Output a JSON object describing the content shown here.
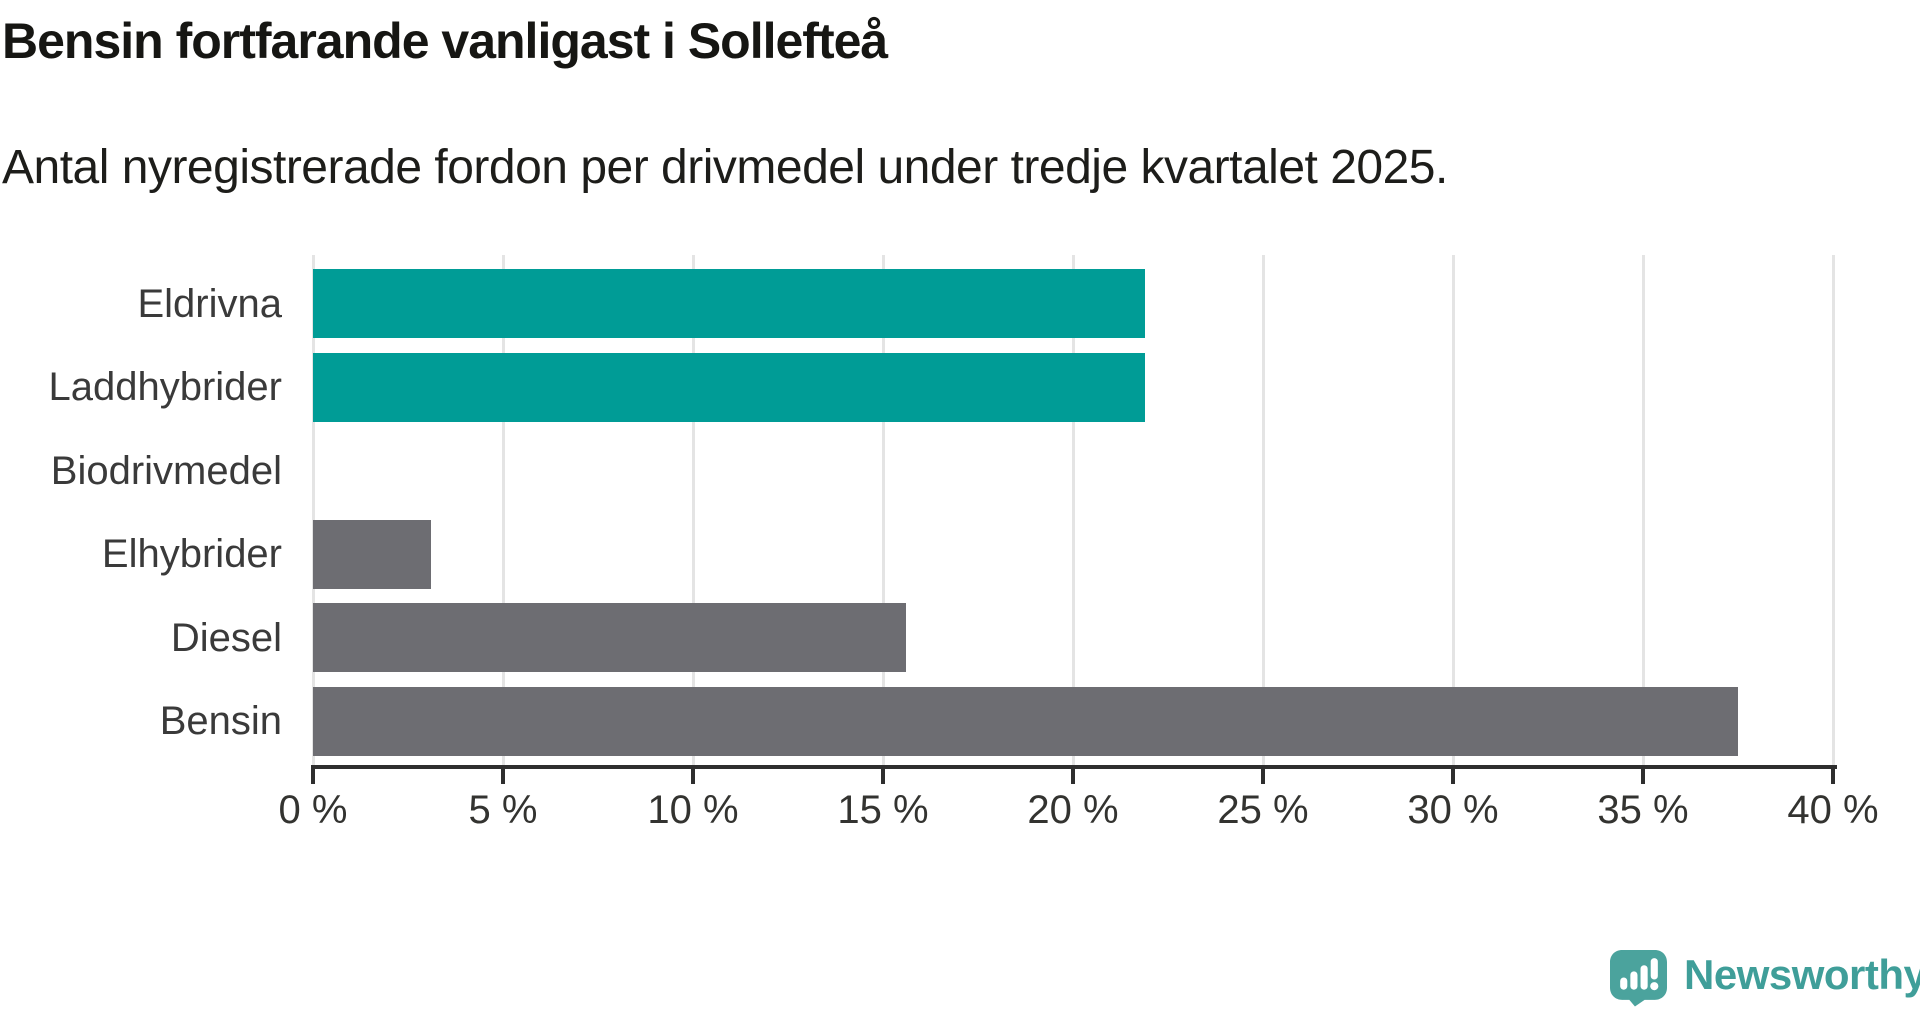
{
  "header": {
    "title": "Bensin fortfarande vanligast i Sollefteå",
    "subtitle": "Antal nyregistrerade fordon per drivmedel under tredje kvartalet 2025."
  },
  "chart_data": {
    "type": "bar",
    "orientation": "horizontal",
    "title": "Bensin fortfarande vanligast i Sollefteå",
    "subtitle": "Antal nyregistrerade fordon per drivmedel under tredje kvartalet 2025.",
    "categories": [
      "Eldrivna",
      "Laddhybrider",
      "Biodrivmedel",
      "Elhybrider",
      "Diesel",
      "Bensin"
    ],
    "values": [
      21.9,
      21.9,
      0,
      3.1,
      15.6,
      37.5
    ],
    "unit": "%",
    "colors": [
      "#009c96",
      "#009c96",
      "#6d6d72",
      "#6d6d72",
      "#6d6d72",
      "#6d6d72"
    ],
    "highlight_color": "#009c96",
    "default_color": "#6d6d72",
    "xlim": [
      0,
      40
    ],
    "xtick_values": [
      0,
      5,
      10,
      15,
      20,
      25,
      30,
      35,
      40
    ],
    "xtick_labels": [
      "0 %",
      "5 %",
      "10 %",
      "15 %",
      "20 %",
      "25 %",
      "30 %",
      "35 %",
      "40 %"
    ],
    "grid": true,
    "legend": false,
    "gridline_color": "#e4e4e4",
    "axis_color": "#2e2e2e"
  },
  "footer": {
    "brand": "Newsworthy",
    "brand_color": "#3f9e99",
    "icon_color": "#4ba39d"
  }
}
